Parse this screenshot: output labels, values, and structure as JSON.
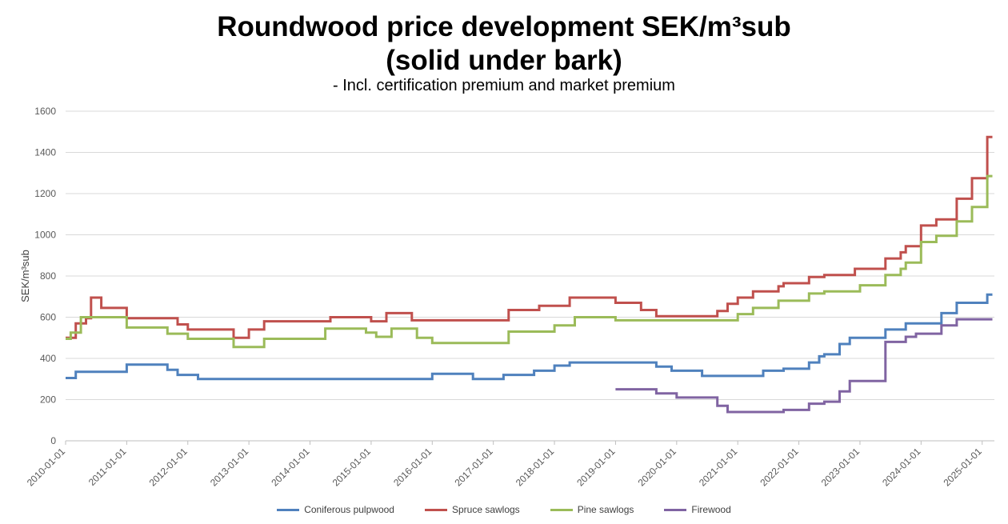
{
  "chart_data": {
    "type": "line",
    "title_line1": "Roundwood price development SEK/m³sub",
    "title_line2": "(solid under bark)",
    "subtitle": "- Incl. certification premium and market premium",
    "ylabel": "SEK/m³sub",
    "ylim": [
      0,
      1600
    ],
    "yticks": [
      0,
      200,
      400,
      600,
      800,
      1000,
      1200,
      1400,
      1600
    ],
    "xlim": [
      2010.0,
      2025.2
    ],
    "xticks": [
      "2010-01-01",
      "2011-01-01",
      "2012-01-01",
      "2013-01-01",
      "2014-01-01",
      "2015-01-01",
      "2016-01-01",
      "2017-01-01",
      "2018-01-01",
      "2019-01-01",
      "2020-01-01",
      "2021-01-01",
      "2022-01-01",
      "2023-01-01",
      "2024-01-01",
      "2025-01-01"
    ],
    "grid": true,
    "legend_position": "bottom",
    "step": true,
    "series": [
      {
        "name": "Coniferous pulpwood",
        "color": "#4f81bd",
        "points": [
          [
            "2010-01",
            305
          ],
          [
            "2010-03",
            335
          ],
          [
            "2011-01",
            370
          ],
          [
            "2011-09",
            345
          ],
          [
            "2011-11",
            320
          ],
          [
            "2012-03",
            300
          ],
          [
            "2016-01",
            325
          ],
          [
            "2016-09",
            300
          ],
          [
            "2017-03",
            320
          ],
          [
            "2017-09",
            340
          ],
          [
            "2018-01",
            365
          ],
          [
            "2018-04",
            380
          ],
          [
            "2019-09",
            360
          ],
          [
            "2019-12",
            340
          ],
          [
            "2020-06",
            315
          ],
          [
            "2021-06",
            340
          ],
          [
            "2021-10",
            350
          ],
          [
            "2022-03",
            380
          ],
          [
            "2022-05",
            410
          ],
          [
            "2022-06",
            420
          ],
          [
            "2022-09",
            470
          ],
          [
            "2022-11",
            500
          ],
          [
            "2023-06",
            540
          ],
          [
            "2023-10",
            570
          ],
          [
            "2024-05",
            620
          ],
          [
            "2024-08",
            670
          ],
          [
            "2025-02",
            710
          ],
          [
            "2025-03",
            710
          ]
        ]
      },
      {
        "name": "Spruce sawlogs",
        "color": "#c0504d",
        "points": [
          [
            "2010-01",
            500
          ],
          [
            "2010-03",
            570
          ],
          [
            "2010-05",
            595
          ],
          [
            "2010-06",
            695
          ],
          [
            "2010-08",
            645
          ],
          [
            "2011-01",
            595
          ],
          [
            "2011-11",
            565
          ],
          [
            "2012-01",
            540
          ],
          [
            "2012-10",
            500
          ],
          [
            "2013-01",
            540
          ],
          [
            "2013-04",
            580
          ],
          [
            "2014-05",
            600
          ],
          [
            "2015-01",
            580
          ],
          [
            "2015-04",
            620
          ],
          [
            "2015-09",
            585
          ],
          [
            "2017-04",
            635
          ],
          [
            "2017-10",
            655
          ],
          [
            "2018-04",
            695
          ],
          [
            "2019-01",
            670
          ],
          [
            "2019-06",
            635
          ],
          [
            "2019-09",
            605
          ],
          [
            "2020-09",
            630
          ],
          [
            "2020-11",
            665
          ],
          [
            "2021-01",
            695
          ],
          [
            "2021-04",
            725
          ],
          [
            "2021-09",
            750
          ],
          [
            "2021-10",
            765
          ],
          [
            "2022-03",
            795
          ],
          [
            "2022-06",
            805
          ],
          [
            "2022-12",
            835
          ],
          [
            "2023-06",
            885
          ],
          [
            "2023-09",
            915
          ],
          [
            "2023-10",
            945
          ],
          [
            "2024-01",
            1045
          ],
          [
            "2024-04",
            1075
          ],
          [
            "2024-08",
            1175
          ],
          [
            "2024-11",
            1275
          ],
          [
            "2025-02",
            1475
          ],
          [
            "2025-03",
            1475
          ]
        ]
      },
      {
        "name": "Pine sawlogs",
        "color": "#9bbb59",
        "points": [
          [
            "2010-01",
            495
          ],
          [
            "2010-02",
            525
          ],
          [
            "2010-04",
            600
          ],
          [
            "2011-01",
            550
          ],
          [
            "2011-09",
            520
          ],
          [
            "2012-01",
            495
          ],
          [
            "2012-10",
            455
          ],
          [
            "2013-04",
            495
          ],
          [
            "2014-04",
            545
          ],
          [
            "2014-12",
            525
          ],
          [
            "2015-02",
            505
          ],
          [
            "2015-05",
            545
          ],
          [
            "2015-10",
            500
          ],
          [
            "2016-01",
            475
          ],
          [
            "2017-04",
            530
          ],
          [
            "2018-01",
            560
          ],
          [
            "2018-05",
            600
          ],
          [
            "2019-01",
            585
          ],
          [
            "2021-01",
            615
          ],
          [
            "2021-04",
            645
          ],
          [
            "2021-09",
            680
          ],
          [
            "2022-03",
            715
          ],
          [
            "2022-06",
            725
          ],
          [
            "2023-01",
            755
          ],
          [
            "2023-06",
            805
          ],
          [
            "2023-09",
            835
          ],
          [
            "2023-10",
            865
          ],
          [
            "2024-01",
            965
          ],
          [
            "2024-04",
            995
          ],
          [
            "2024-08",
            1065
          ],
          [
            "2024-11",
            1135
          ],
          [
            "2025-02",
            1285
          ],
          [
            "2025-03",
            1285
          ]
        ]
      },
      {
        "name": "Firewood",
        "color": "#8064a2",
        "points": [
          [
            "2019-01",
            250
          ],
          [
            "2019-09",
            230
          ],
          [
            "2020-01",
            210
          ],
          [
            "2020-09",
            170
          ],
          [
            "2020-11",
            140
          ],
          [
            "2021-10",
            150
          ],
          [
            "2022-03",
            180
          ],
          [
            "2022-06",
            190
          ],
          [
            "2022-09",
            240
          ],
          [
            "2022-11",
            290
          ],
          [
            "2023-06",
            480
          ],
          [
            "2023-10",
            505
          ],
          [
            "2023-12",
            520
          ],
          [
            "2024-05",
            560
          ],
          [
            "2024-08",
            590
          ],
          [
            "2025-03",
            590
          ]
        ]
      }
    ]
  }
}
